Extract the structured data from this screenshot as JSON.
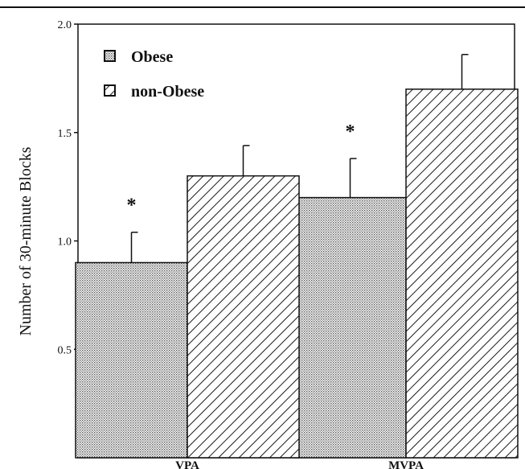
{
  "chart_data": {
    "type": "bar",
    "ylabel": "Number of 30-minute Blocks",
    "categories": [
      "VPA",
      "MVPA"
    ],
    "ylim": [
      0.0,
      2.0
    ],
    "yticks": [
      "0.5",
      "1.0",
      "1.5",
      "2.0"
    ],
    "ytick_values": [
      0.5,
      1.0,
      1.5,
      2.0
    ],
    "grid": false,
    "legend_position": "top-left",
    "series": [
      {
        "name": "Obese",
        "values": [
          0.9,
          1.2
        ],
        "errors": [
          0.14,
          0.18
        ],
        "pattern": "dotted"
      },
      {
        "name": "non-Obese",
        "values": [
          1.3,
          1.7
        ],
        "errors": [
          0.14,
          0.16
        ],
        "pattern": "hatched"
      }
    ],
    "annotations": [
      {
        "text": "*",
        "category": "VPA",
        "series": "Obese"
      },
      {
        "text": "*",
        "category": "MVPA",
        "series": "Obese"
      }
    ],
    "colors": {
      "ink": "#111111",
      "obese_fill": "#d4d4d4",
      "hatch": "#1a1a1a"
    }
  }
}
